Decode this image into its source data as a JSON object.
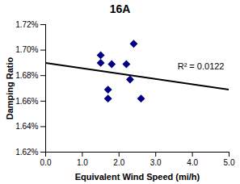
{
  "chart_data": {
    "type": "scatter",
    "title": "16A",
    "x_label": "Equivalent Wind Speed (mi/h)",
    "y_label": "Damping Ratio",
    "x": [
      1.5,
      1.5,
      1.7,
      1.7,
      1.8,
      2.2,
      2.3,
      2.4,
      2.6
    ],
    "values": [
      1.696,
      1.69,
      1.669,
      1.662,
      1.689,
      1.689,
      1.677,
      1.705,
      1.662
    ],
    "color": "#000080",
    "marker": "diamond",
    "trendline": {
      "x": [
        0,
        5
      ],
      "values": [
        1.69,
        1.669
      ],
      "color": "#000000"
    },
    "annotations": [
      "R² = 0.0122"
    ],
    "xlim": [
      0,
      5
    ],
    "xticks": [
      {
        "value": 0,
        "label": "0.0"
      },
      {
        "value": 1,
        "label": "1.0"
      },
      {
        "value": 2,
        "label": "2.0"
      },
      {
        "value": 3,
        "label": "3.0"
      },
      {
        "value": 4,
        "label": "4.0"
      },
      {
        "value": 5,
        "label": "5.0"
      }
    ],
    "ylim": [
      1.62,
      1.72
    ],
    "yticks": [
      {
        "value": 1.62,
        "label": "1.62%"
      },
      {
        "value": 1.64,
        "label": "1.64%"
      },
      {
        "value": 1.66,
        "label": "1.66%"
      },
      {
        "value": 1.68,
        "label": "1.68%"
      },
      {
        "value": 1.7,
        "label": "1.70%"
      },
      {
        "value": 1.72,
        "label": "1.72%"
      }
    ],
    "grid": false
  }
}
